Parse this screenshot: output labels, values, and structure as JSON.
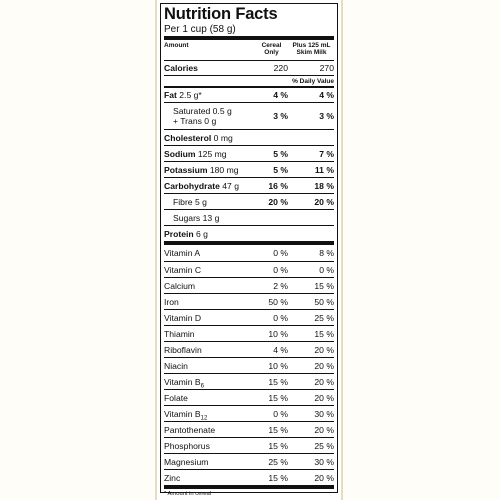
{
  "title": "Nutrition Facts",
  "serving": "Per 1 cup (58 g)",
  "headers": {
    "amount": "Amount",
    "col1_line1": "Cereal",
    "col1_line2": "Only",
    "col2_line1": "Plus 125 mL",
    "col2_line2": "Skim Milk"
  },
  "calories": {
    "name": "Calories",
    "v1": "220",
    "v2": "270"
  },
  "daily_value_label": "% Daily Value",
  "nutrients": [
    {
      "name": "Fat",
      "amount": "2.5 g*",
      "v1": "4 %",
      "v2": "4 %"
    },
    {
      "line1": "Saturated 0.5 g",
      "line2": "+ Trans 0 g",
      "v1": "3 %",
      "v2": "3 %"
    },
    {
      "name": "Cholesterol",
      "amount": "0 mg"
    },
    {
      "name": "Sodium",
      "amount": "125 mg",
      "v1": "5 %",
      "v2": "7 %"
    },
    {
      "name": "Potassium",
      "amount": "180 mg",
      "v1": "5 %",
      "v2": "11 %"
    },
    {
      "name": "Carbohydrate",
      "amount": "47 g",
      "v1": "16 %",
      "v2": "18 %"
    },
    {
      "name": "Fibre 5 g",
      "v1": "20 %",
      "v2": "20 %"
    },
    {
      "name": "Sugars 13 g"
    },
    {
      "name": "Protein",
      "amount": "6 g"
    }
  ],
  "vitamins": [
    {
      "name": "Vitamin A",
      "v1": "0 %",
      "v2": "8 %"
    },
    {
      "name": "Vitamin C",
      "v1": "0 %",
      "v2": "0 %"
    },
    {
      "name": "Calcium",
      "v1": "2 %",
      "v2": "15 %"
    },
    {
      "name": "Iron",
      "v1": "50 %",
      "v2": "50 %"
    },
    {
      "name": "Vitamin D",
      "v1": "0 %",
      "v2": "25 %"
    },
    {
      "name": "Thiamin",
      "v1": "10 %",
      "v2": "15 %"
    },
    {
      "name": "Riboflavin",
      "v1": "4 %",
      "v2": "20 %"
    },
    {
      "name": "Niacin",
      "v1": "10 %",
      "v2": "20 %"
    },
    {
      "name": "Vitamin B",
      "sub": "6",
      "v1": "15 %",
      "v2": "20 %"
    },
    {
      "name": "Folate",
      "v1": "15 %",
      "v2": "20 %"
    },
    {
      "name": "Vitamin B",
      "sub": "12",
      "v1": "0 %",
      "v2": "30 %"
    },
    {
      "name": "Pantothenate",
      "v1": "15 %",
      "v2": "20 %"
    },
    {
      "name": "Phosphorus",
      "v1": "15 %",
      "v2": "25 %"
    },
    {
      "name": "Magnesium",
      "v1": "25 %",
      "v2": "30 %"
    },
    {
      "name": "Zinc",
      "v1": "15 %",
      "v2": "20 %"
    }
  ],
  "footnote": "* Amount in cereal"
}
